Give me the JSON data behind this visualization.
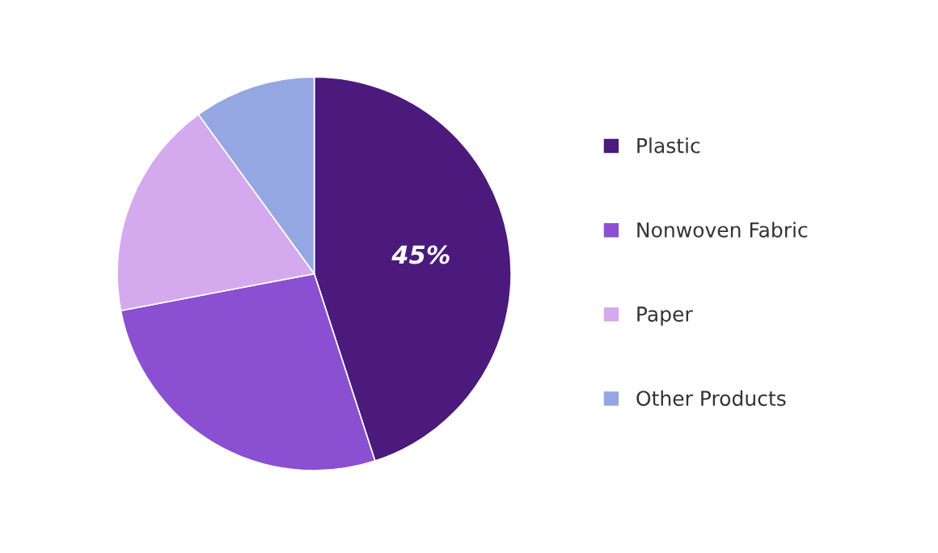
{
  "chart_data": {
    "type": "pie",
    "categories": [
      "Plastic",
      "Nonwoven Fabric",
      "Paper",
      "Other Products"
    ],
    "values": [
      45,
      27,
      18,
      10
    ],
    "colors": [
      "#4b1a7c",
      "#8b4fd2",
      "#d4a9ee",
      "#94a7e2"
    ],
    "value_labels": [
      "45%",
      null,
      null,
      null
    ],
    "legend": "right"
  }
}
